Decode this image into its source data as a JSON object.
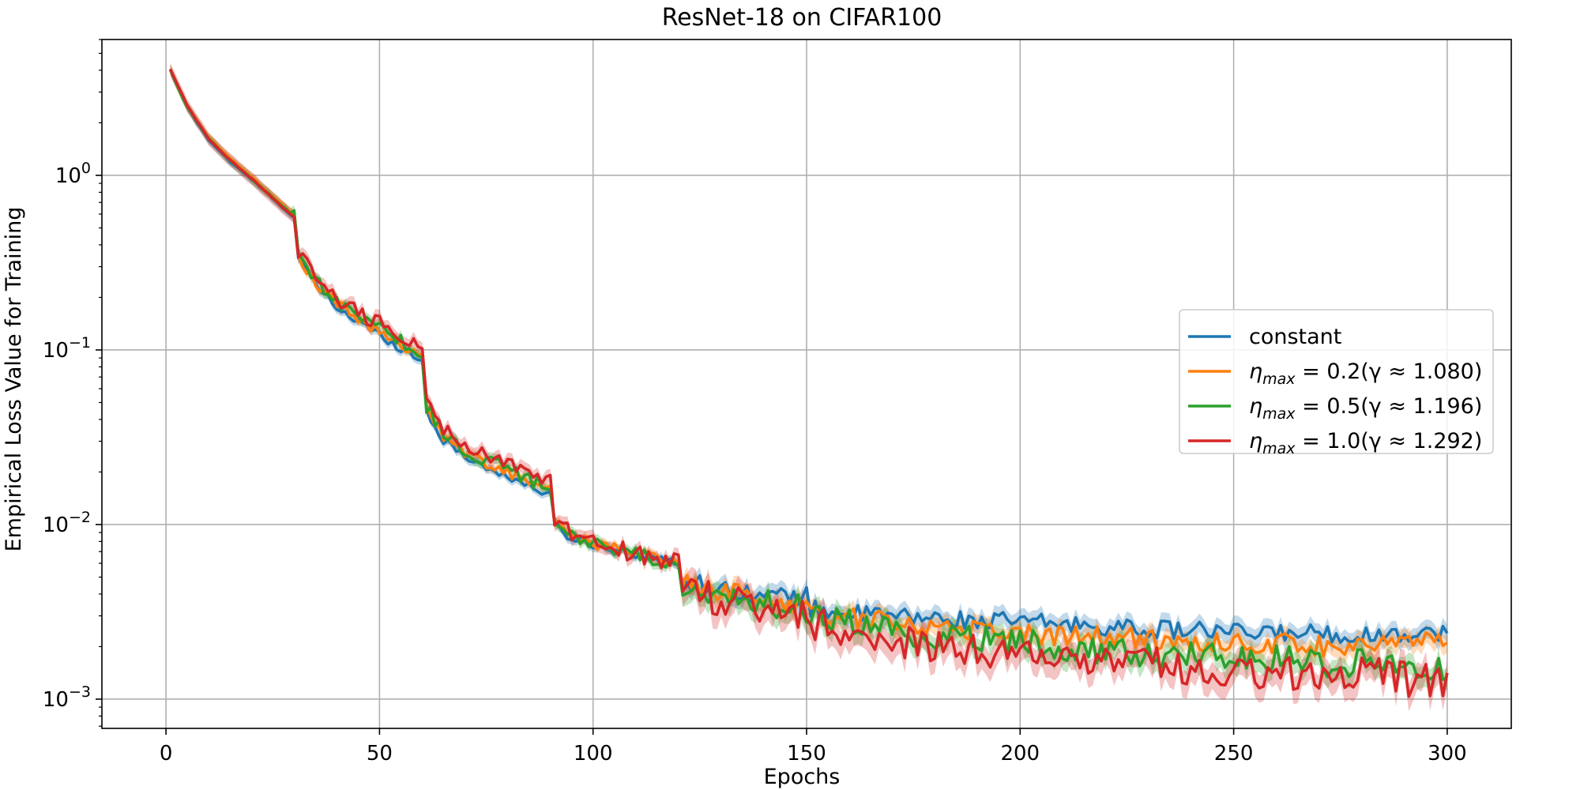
{
  "chart_data": {
    "type": "line",
    "title": "ResNet-18 on CIFAR100",
    "xlabel": "Epochs",
    "ylabel": "Empirical Loss Value for Training",
    "xlim": [
      -15,
      315
    ],
    "ylim": [
      0.00068,
      6.0
    ],
    "yscale": "log",
    "grid": true,
    "legend_position": "center-right",
    "x_ticks": [
      0,
      50,
      100,
      150,
      200,
      250,
      300
    ],
    "y_ticks": [
      {
        "value": 0.001,
        "base": "10",
        "exp": "−3"
      },
      {
        "value": 0.01,
        "base": "10",
        "exp": "−2"
      },
      {
        "value": 0.1,
        "base": "10",
        "exp": "−1"
      },
      {
        "value": 1,
        "base": "10",
        "exp": "0"
      }
    ],
    "series": [
      {
        "name": "constant",
        "color": "#1f77b4",
        "legend_parts": {
          "main": "constant",
          "sub": "",
          "rest": ""
        },
        "points": [
          [
            1,
            4.0
          ],
          [
            5,
            2.45
          ],
          [
            10,
            1.6
          ],
          [
            15,
            1.2
          ],
          [
            20,
            0.95
          ],
          [
            25,
            0.74
          ],
          [
            30,
            0.57
          ],
          [
            31,
            0.33
          ],
          [
            35,
            0.235
          ],
          [
            40,
            0.175
          ],
          [
            45,
            0.145
          ],
          [
            50,
            0.122
          ],
          [
            55,
            0.103
          ],
          [
            60,
            0.087
          ],
          [
            61,
            0.045
          ],
          [
            65,
            0.03
          ],
          [
            70,
            0.025
          ],
          [
            75,
            0.021
          ],
          [
            80,
            0.019
          ],
          [
            85,
            0.0165
          ],
          [
            90,
            0.015
          ],
          [
            91,
            0.01
          ],
          [
            95,
            0.0083
          ],
          [
            100,
            0.0077
          ],
          [
            105,
            0.0072
          ],
          [
            110,
            0.0068
          ],
          [
            115,
            0.0063
          ],
          [
            120,
            0.006
          ],
          [
            121,
            0.0048
          ],
          [
            125,
            0.0046
          ],
          [
            130,
            0.0042
          ],
          [
            135,
            0.0042
          ],
          [
            140,
            0.0039
          ],
          [
            145,
            0.0039
          ],
          [
            150,
            0.0039
          ],
          [
            151,
            0.0033
          ],
          [
            160,
            0.0031
          ],
          [
            170,
            0.003
          ],
          [
            180,
            0.0029
          ],
          [
            190,
            0.0028
          ],
          [
            200,
            0.0028
          ],
          [
            210,
            0.0027
          ],
          [
            220,
            0.0026
          ],
          [
            230,
            0.0025
          ],
          [
            240,
            0.0025
          ],
          [
            250,
            0.0024
          ],
          [
            260,
            0.0024
          ],
          [
            270,
            0.0024
          ],
          [
            280,
            0.0023
          ],
          [
            290,
            0.0024
          ],
          [
            300,
            0.0024
          ]
        ],
        "band": 0.12,
        "noise": 0.05
      },
      {
        "name": "η_max = 0.2(γ ≈ 1.080)",
        "color": "#ff7f0e",
        "legend_parts": {
          "main": "η",
          "sub": "max",
          "rest": " = 0.2(γ ≈ 1.080)"
        },
        "points": [
          [
            1,
            4.0
          ],
          [
            5,
            2.5
          ],
          [
            10,
            1.65
          ],
          [
            15,
            1.25
          ],
          [
            20,
            0.98
          ],
          [
            25,
            0.76
          ],
          [
            30,
            0.59
          ],
          [
            31,
            0.34
          ],
          [
            35,
            0.245
          ],
          [
            40,
            0.185
          ],
          [
            45,
            0.152
          ],
          [
            50,
            0.128
          ],
          [
            55,
            0.108
          ],
          [
            60,
            0.091
          ],
          [
            61,
            0.047
          ],
          [
            65,
            0.032
          ],
          [
            70,
            0.026
          ],
          [
            75,
            0.022
          ],
          [
            80,
            0.02
          ],
          [
            85,
            0.0172
          ],
          [
            90,
            0.0158
          ],
          [
            91,
            0.0105
          ],
          [
            95,
            0.0085
          ],
          [
            100,
            0.0078
          ],
          [
            105,
            0.0073
          ],
          [
            110,
            0.0068
          ],
          [
            115,
            0.0064
          ],
          [
            120,
            0.0061
          ],
          [
            121,
            0.0046
          ],
          [
            125,
            0.0044
          ],
          [
            130,
            0.0041
          ],
          [
            135,
            0.004
          ],
          [
            140,
            0.0037
          ],
          [
            145,
            0.0036
          ],
          [
            150,
            0.0035
          ],
          [
            151,
            0.0031
          ],
          [
            160,
            0.0029
          ],
          [
            170,
            0.0028
          ],
          [
            180,
            0.0026
          ],
          [
            190,
            0.0025
          ],
          [
            200,
            0.0024
          ],
          [
            210,
            0.0023
          ],
          [
            220,
            0.0023
          ],
          [
            230,
            0.0022
          ],
          [
            240,
            0.0021
          ],
          [
            250,
            0.0021
          ],
          [
            260,
            0.0021
          ],
          [
            270,
            0.002
          ],
          [
            280,
            0.0021
          ],
          [
            290,
            0.0021
          ],
          [
            300,
            0.0021
          ]
        ],
        "band": 0.12,
        "noise": 0.06
      },
      {
        "name": "η_max = 0.5(γ ≈ 1.196)",
        "color": "#2ca02c",
        "legend_parts": {
          "main": "η",
          "sub": "max",
          "rest": " = 0.5(γ ≈ 1.196)"
        },
        "points": [
          [
            1,
            4.0
          ],
          [
            5,
            2.45
          ],
          [
            10,
            1.62
          ],
          [
            15,
            1.22
          ],
          [
            20,
            0.96
          ],
          [
            25,
            0.75
          ],
          [
            30,
            0.58
          ],
          [
            31,
            0.34
          ],
          [
            35,
            0.25
          ],
          [
            40,
            0.19
          ],
          [
            45,
            0.157
          ],
          [
            50,
            0.132
          ],
          [
            55,
            0.112
          ],
          [
            60,
            0.095
          ],
          [
            61,
            0.048
          ],
          [
            65,
            0.033
          ],
          [
            70,
            0.027
          ],
          [
            75,
            0.023
          ],
          [
            80,
            0.021
          ],
          [
            85,
            0.018
          ],
          [
            90,
            0.0165
          ],
          [
            91,
            0.0108
          ],
          [
            95,
            0.0086
          ],
          [
            100,
            0.0078
          ],
          [
            105,
            0.0073
          ],
          [
            110,
            0.0068
          ],
          [
            115,
            0.0063
          ],
          [
            120,
            0.006
          ],
          [
            121,
            0.0044
          ],
          [
            125,
            0.0042
          ],
          [
            130,
            0.004
          ],
          [
            135,
            0.0038
          ],
          [
            140,
            0.0035
          ],
          [
            145,
            0.0034
          ],
          [
            150,
            0.0033
          ],
          [
            151,
            0.0029
          ],
          [
            160,
            0.0027
          ],
          [
            170,
            0.0025
          ],
          [
            180,
            0.0023
          ],
          [
            190,
            0.0022
          ],
          [
            200,
            0.0021
          ],
          [
            210,
            0.002
          ],
          [
            220,
            0.0019
          ],
          [
            230,
            0.0018
          ],
          [
            240,
            0.0018
          ],
          [
            250,
            0.0017
          ],
          [
            260,
            0.0017
          ],
          [
            270,
            0.0016
          ],
          [
            280,
            0.0016
          ],
          [
            290,
            0.0016
          ],
          [
            300,
            0.0015
          ]
        ],
        "band": 0.14,
        "noise": 0.08
      },
      {
        "name": "η_max = 1.0(γ ≈ 1.292)",
        "color": "#d62728",
        "legend_parts": {
          "main": "η",
          "sub": "max",
          "rest": " = 1.0(γ ≈ 1.292)"
        },
        "points": [
          [
            1,
            4.1
          ],
          [
            5,
            2.5
          ],
          [
            10,
            1.62
          ],
          [
            15,
            1.22
          ],
          [
            20,
            0.96
          ],
          [
            25,
            0.74
          ],
          [
            30,
            0.57
          ],
          [
            31,
            0.35
          ],
          [
            35,
            0.26
          ],
          [
            40,
            0.2
          ],
          [
            45,
            0.165
          ],
          [
            50,
            0.14
          ],
          [
            55,
            0.117
          ],
          [
            60,
            0.098
          ],
          [
            61,
            0.05
          ],
          [
            65,
            0.035
          ],
          [
            70,
            0.029
          ],
          [
            75,
            0.024
          ],
          [
            80,
            0.022
          ],
          [
            85,
            0.0195
          ],
          [
            90,
            0.018
          ],
          [
            91,
            0.011
          ],
          [
            95,
            0.0088
          ],
          [
            100,
            0.0079
          ],
          [
            105,
            0.0073
          ],
          [
            110,
            0.0068
          ],
          [
            115,
            0.0063
          ],
          [
            120,
            0.0061
          ],
          [
            121,
            0.0043
          ],
          [
            125,
            0.0039
          ],
          [
            130,
            0.0037
          ],
          [
            135,
            0.0035
          ],
          [
            140,
            0.0034
          ],
          [
            145,
            0.0033
          ],
          [
            150,
            0.0032
          ],
          [
            151,
            0.0027
          ],
          [
            160,
            0.0024
          ],
          [
            170,
            0.0022
          ],
          [
            180,
            0.002
          ],
          [
            190,
            0.0019
          ],
          [
            200,
            0.0018
          ],
          [
            210,
            0.0017
          ],
          [
            220,
            0.0016
          ],
          [
            230,
            0.0016
          ],
          [
            240,
            0.0015
          ],
          [
            250,
            0.0015
          ],
          [
            260,
            0.0014
          ],
          [
            270,
            0.0014
          ],
          [
            280,
            0.0014
          ],
          [
            290,
            0.0013
          ],
          [
            300,
            0.0013
          ]
        ],
        "band": 0.18,
        "noise": 0.1
      }
    ]
  }
}
